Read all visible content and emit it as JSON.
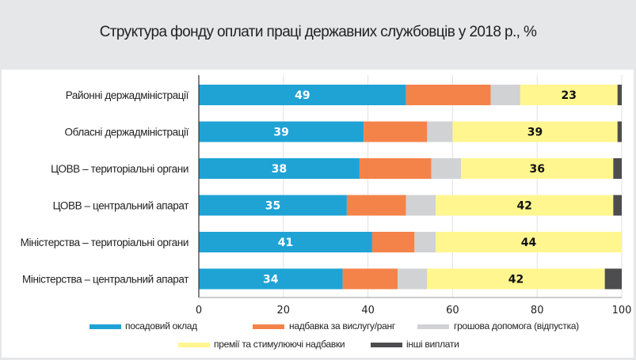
{
  "chart_data": {
    "type": "bar",
    "orientation": "horizontal",
    "stacked": true,
    "title": "Структура фонду оплати праці державних службовців у 2018 р., %",
    "xlabel": "",
    "ylabel": "",
    "xlim": [
      0,
      100
    ],
    "xticks": [
      0,
      20,
      40,
      60,
      80,
      100
    ],
    "grid": true,
    "legend_position": "bottom",
    "categories": [
      "Районні держадміністрації",
      "Обласні держадміністрації",
      "ЦОВВ – територіальні органи",
      "ЦОВВ – центральний апарат",
      "Міністерства – територіальні органи",
      "Міністерства – центральний апарат"
    ],
    "series": [
      {
        "name": "посадовий оклад",
        "color": "#1fa3d5",
        "values": [
          49,
          39,
          38,
          35,
          41,
          34
        ],
        "labels_shown": true,
        "label_color": "#ffffff"
      },
      {
        "name": "надбавка за вислугу/ранг",
        "color": "#f4834a",
        "values": [
          20,
          15,
          17,
          14,
          10,
          13
        ],
        "labels_shown": false
      },
      {
        "name": "грошова допомога (відпустка)",
        "color": "#d1d2d4",
        "values": [
          7,
          6,
          7,
          7,
          5,
          7
        ],
        "labels_shown": false
      },
      {
        "name": "премії та стимулюючі надбавки",
        "color": "#fff68f",
        "values": [
          23,
          39,
          36,
          42,
          44,
          42
        ],
        "labels_shown": true,
        "label_color": "#111111"
      },
      {
        "name": "інші виплати",
        "color": "#4d4d4f",
        "values": [
          1,
          1,
          2,
          2,
          0,
          4
        ],
        "labels_shown": false
      }
    ]
  }
}
